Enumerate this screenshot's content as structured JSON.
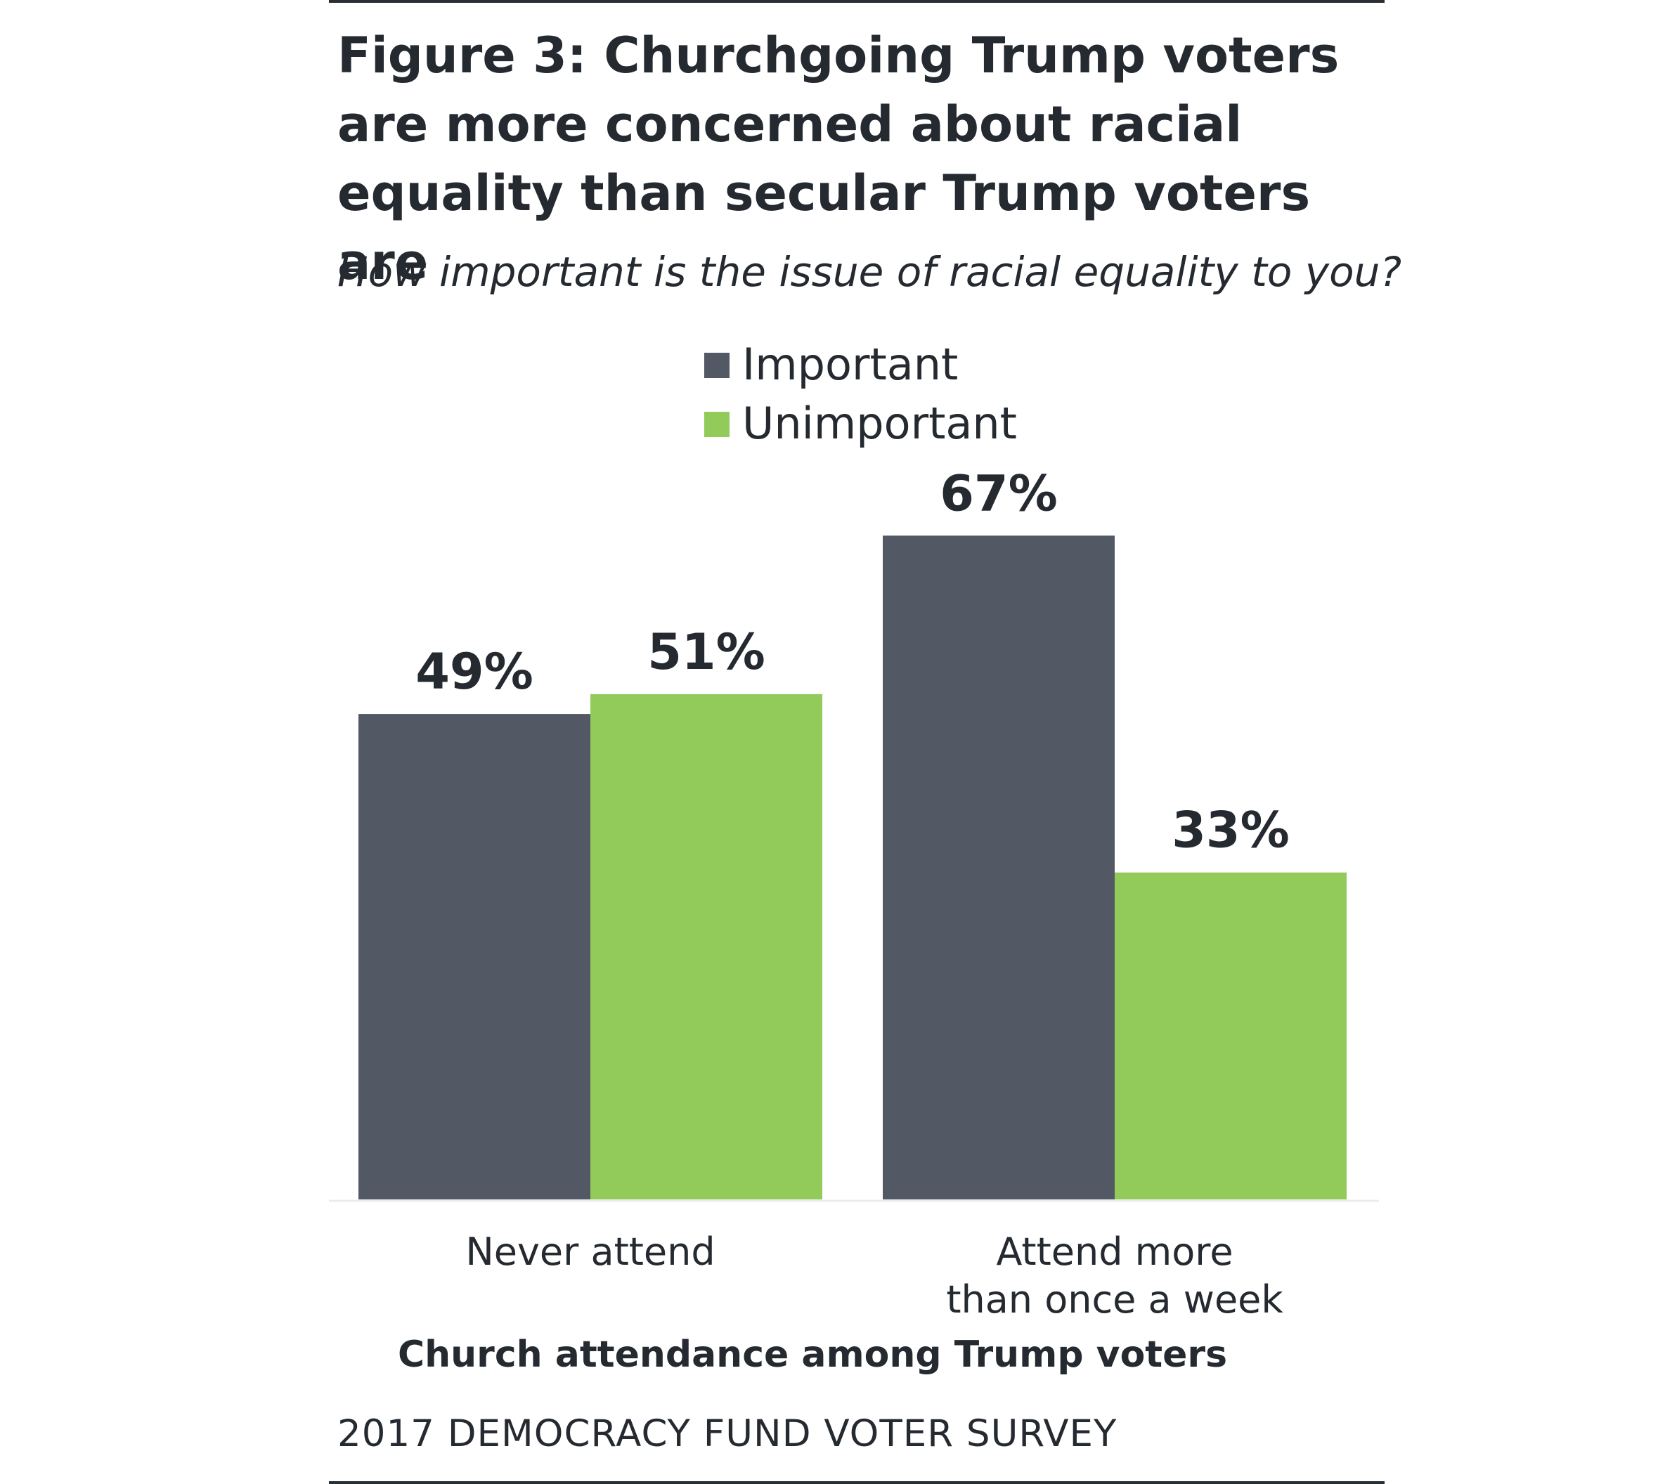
{
  "page": {
    "title": "Figure 3: Churchgoing Trump voters are more concerned about racial equality than secular Trump voters are",
    "subtitle": "How important is the issue of racial equality to you?",
    "source": "2017 DEMOCRACY FUND VOTER SURVEY"
  },
  "chart_data": {
    "type": "bar",
    "title": "Figure 3: Churchgoing Trump voters are more concerned about racial equality than secular Trump voters are",
    "subtitle": "How important is the issue of racial equality to you?",
    "xlabel": "Church attendance among Trump voters",
    "ylabel": "",
    "categories": [
      [
        "Never attend"
      ],
      [
        "Attend more",
        "than once a week"
      ]
    ],
    "series": [
      {
        "name": "Important",
        "color": "#525965",
        "values": [
          49,
          67
        ],
        "labels": [
          "49%",
          "67%"
        ]
      },
      {
        "name": "Unimportant",
        "color": "#93cb5b",
        "values": [
          51,
          33
        ],
        "labels": [
          "51%",
          "33%"
        ]
      }
    ],
    "ylim": [
      0,
      100
    ],
    "grid": false,
    "legend": "top-center"
  }
}
